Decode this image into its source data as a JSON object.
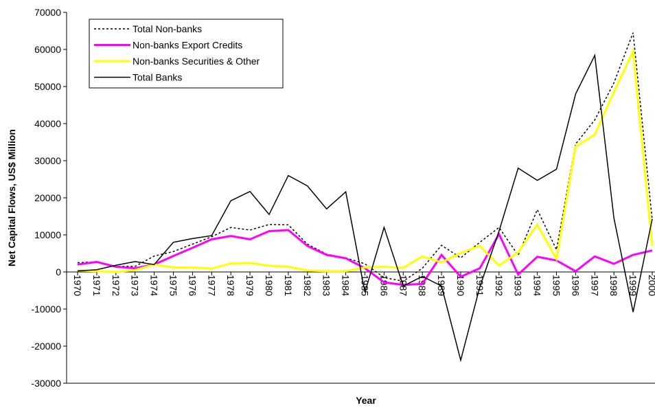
{
  "chart_data": {
    "type": "line",
    "y_axis_label": "Net Capital Flows, US$ Million",
    "x_axis_label": "Year",
    "categories": [
      "1970",
      "1971",
      "1972",
      "1973",
      "1974",
      "1975",
      "1976",
      "1977",
      "1978",
      "1979",
      "1980",
      "1981",
      "1982",
      "1983",
      "1984",
      "1985",
      "1986",
      "1987",
      "1988",
      "1989",
      "1990",
      "1991",
      "1992",
      "1993",
      "1994",
      "1995",
      "1996",
      "1997",
      "1998",
      "1999",
      "2000"
    ],
    "series": [
      {
        "name": "Total Non-banks",
        "color": "#000000",
        "line_style": "dotted",
        "values": [
          2500,
          2700,
          1500,
          1500,
          4300,
          5500,
          7500,
          9500,
          12000,
          11300,
          12800,
          12700,
          7500,
          4800,
          3800,
          2200,
          -1500,
          -2500,
          1000,
          7200,
          3800,
          8000,
          12000,
          4500,
          16800,
          6000,
          34500,
          41000,
          51000,
          64500,
          14000
        ]
      },
      {
        "name": "Non-banks Export Credits",
        "color": "#ff00ff",
        "line_style": "solid",
        "values": [
          2000,
          2700,
          1400,
          1000,
          2000,
          4300,
          6500,
          8800,
          9700,
          8800,
          11000,
          11300,
          7000,
          4600,
          3700,
          1000,
          -2800,
          -3500,
          -3200,
          4600,
          -1300,
          1000,
          10200,
          -700,
          4100,
          3100,
          200,
          4200,
          2200,
          4600,
          5800
        ]
      },
      {
        "name": "Non-banks Securities & Other",
        "color": "#ffff00",
        "line_style": "solid",
        "values": [
          400,
          200,
          0,
          500,
          2000,
          1200,
          1200,
          900,
          2300,
          2400,
          1700,
          1400,
          400,
          200,
          200,
          1200,
          1400,
          1100,
          4200,
          2600,
          5100,
          7000,
          1700,
          5300,
          12700,
          3500,
          33800,
          37000,
          48500,
          59500,
          7000
        ]
      },
      {
        "name": "Total Banks",
        "color": "#000000",
        "line_style": "solid",
        "values": [
          300,
          600,
          1800,
          2800,
          2000,
          8000,
          9000,
          9800,
          19200,
          21700,
          15500,
          26000,
          23200,
          17000,
          21600,
          -5500,
          12000,
          -3800,
          -1200,
          -3800,
          -23800,
          -4000,
          11000,
          28000,
          24700,
          27700,
          48000,
          58400,
          14500,
          -10800,
          14300
        ]
      }
    ],
    "ylim": [
      -30000,
      70000
    ],
    "yticks": [
      -30000,
      -20000,
      -10000,
      0,
      10000,
      20000,
      30000,
      40000,
      50000,
      60000,
      70000
    ],
    "legend": "top-left"
  }
}
